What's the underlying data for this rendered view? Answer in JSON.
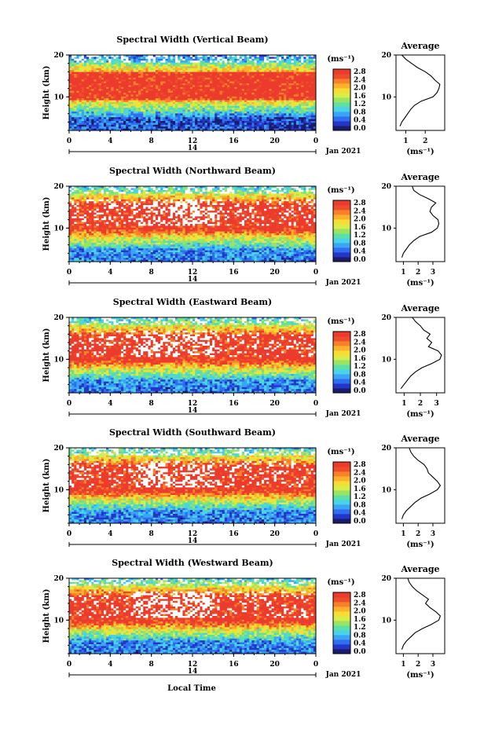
{
  "chart_data": [
    {
      "type": "heatmap",
      "title": "Spectral Width (Vertical Beam)",
      "ylabel": "Height (km)",
      "xticks": [
        "0",
        "4",
        "8",
        "12",
        "16",
        "20",
        "0"
      ],
      "date_tick": "14",
      "date_label": "Jan 2021",
      "ylim": [
        2,
        20
      ],
      "yticks": [
        "20",
        "10"
      ],
      "colorbar": {
        "unit": "(ms⁻¹)",
        "ticks": [
          "2.8",
          "2.4",
          "2.0",
          "1.6",
          "1.2",
          "0.8",
          "0.4",
          "0.0"
        ]
      },
      "profile": {
        "title": "Average",
        "xticks": [
          "1",
          "2"
        ],
        "xlim": [
          0.5,
          3.0
        ],
        "unit": "(ms⁻¹)",
        "yticks": [
          "20",
          "10"
        ],
        "heights": [
          3,
          4,
          5,
          6,
          7,
          8,
          9,
          10,
          11,
          12,
          13,
          14,
          15,
          16,
          17,
          18,
          19,
          20
        ],
        "values": [
          0.7,
          0.8,
          0.95,
          1.1,
          1.25,
          1.45,
          1.8,
          2.4,
          2.6,
          2.7,
          2.75,
          2.5,
          2.3,
          2.0,
          1.6,
          1.3,
          1.0,
          0.8
        ]
      }
    },
    {
      "type": "heatmap",
      "title": "Spectral Width (Northward Beam)",
      "ylabel": "Height (km)",
      "xticks": [
        "0",
        "4",
        "8",
        "12",
        "16",
        "20",
        "0"
      ],
      "date_tick": "14",
      "date_label": "Jan 2021",
      "ylim": [
        2,
        20
      ],
      "yticks": [
        "20",
        "10"
      ],
      "colorbar": {
        "unit": "(ms⁻¹)",
        "ticks": [
          "2.8",
          "2.4",
          "2.0",
          "1.6",
          "1.2",
          "0.8",
          "0.4",
          "0.0"
        ]
      },
      "profile": {
        "title": "Average",
        "xticks": [
          "1",
          "2",
          "3"
        ],
        "xlim": [
          0.5,
          3.8
        ],
        "unit": "(ms⁻¹)",
        "yticks": [
          "20",
          "10"
        ],
        "heights": [
          3,
          4,
          5,
          6,
          7,
          8,
          9,
          10,
          11,
          12,
          13,
          14,
          15,
          16,
          17,
          18,
          19,
          20
        ],
        "values": [
          0.9,
          1.0,
          1.2,
          1.4,
          1.7,
          2.1,
          2.9,
          3.3,
          3.4,
          3.35,
          3.0,
          2.8,
          2.9,
          3.2,
          2.7,
          2.1,
          1.7,
          1.6
        ]
      }
    },
    {
      "type": "heatmap",
      "title": "Spectral Width (Eastward Beam)",
      "ylabel": "Height (km)",
      "xticks": [
        "0",
        "4",
        "8",
        "12",
        "16",
        "20",
        "0"
      ],
      "date_tick": "14",
      "date_label": "Jan 2021",
      "ylim": [
        2,
        20
      ],
      "yticks": [
        "20",
        "10"
      ],
      "colorbar": {
        "unit": "(ms⁻¹)",
        "ticks": [
          "2.8",
          "2.4",
          "2.0",
          "1.6",
          "1.2",
          "0.8",
          "0.4",
          "0.0"
        ]
      },
      "profile": {
        "title": "Average",
        "xticks": [
          "1",
          "2",
          "3"
        ],
        "xlim": [
          0.5,
          3.5
        ],
        "unit": "(ms⁻¹)",
        "yticks": [
          "20",
          "10"
        ],
        "heights": [
          3,
          4,
          5,
          6,
          7,
          8,
          9,
          10,
          11,
          12,
          13,
          14,
          15,
          16,
          17,
          18,
          19,
          20
        ],
        "values": [
          0.8,
          1.0,
          1.2,
          1.4,
          1.7,
          2.1,
          2.7,
          3.2,
          3.3,
          3.1,
          2.5,
          2.7,
          2.4,
          2.6,
          2.2,
          2.0,
          1.7,
          1.5
        ]
      }
    },
    {
      "type": "heatmap",
      "title": "Spectral Width (Southward Beam)",
      "ylabel": "Height (km)",
      "xticks": [
        "0",
        "4",
        "8",
        "12",
        "16",
        "20",
        "0"
      ],
      "date_tick": "14",
      "date_label": "Jan 2021",
      "ylim": [
        2,
        20
      ],
      "yticks": [
        "20",
        "10"
      ],
      "colorbar": {
        "unit": "(ms⁻¹)",
        "ticks": [
          "2.8",
          "2.4",
          "2.0",
          "1.6",
          "1.2",
          "0.8",
          "0.4",
          "0.0"
        ]
      },
      "profile": {
        "title": "Average",
        "xticks": [
          "1",
          "2",
          "3"
        ],
        "xlim": [
          0.5,
          3.8
        ],
        "unit": "(ms⁻¹)",
        "yticks": [
          "20",
          "10"
        ],
        "heights": [
          3,
          4,
          5,
          6,
          7,
          8,
          9,
          10,
          11,
          12,
          13,
          14,
          15,
          16,
          17,
          18,
          19,
          20
        ],
        "values": [
          0.9,
          1.0,
          1.2,
          1.5,
          1.8,
          2.2,
          2.8,
          3.3,
          3.5,
          3.3,
          3.0,
          2.7,
          2.6,
          2.4,
          2.0,
          1.7,
          1.5,
          1.4
        ]
      }
    },
    {
      "type": "heatmap",
      "title": "Spectral Width (Westward Beam)",
      "ylabel": "Height (km)",
      "xticks": [
        "0",
        "4",
        "8",
        "12",
        "16",
        "20",
        "0"
      ],
      "date_tick": "14",
      "date_label": "Jan 2021",
      "ylim": [
        2,
        20
      ],
      "yticks": [
        "20",
        "10"
      ],
      "colorbar": {
        "unit": "(ms⁻¹)",
        "ticks": [
          "2.8",
          "2.4",
          "2.0",
          "1.6",
          "1.2",
          "0.8",
          "0.4",
          "0.0"
        ]
      },
      "profile": {
        "title": "Average",
        "xticks": [
          "1",
          "2",
          "3"
        ],
        "xlim": [
          0.5,
          3.8
        ],
        "unit": "(ms⁻¹)",
        "yticks": [
          "20",
          "10"
        ],
        "heights": [
          3,
          4,
          5,
          6,
          7,
          8,
          9,
          10,
          11,
          12,
          13,
          14,
          15,
          16,
          17,
          18,
          19,
          20
        ],
        "values": [
          0.9,
          1.0,
          1.2,
          1.5,
          1.8,
          2.3,
          2.9,
          3.4,
          3.5,
          3.2,
          2.8,
          2.5,
          2.7,
          2.3,
          1.9,
          1.6,
          1.4,
          1.3
        ]
      }
    }
  ],
  "xlabel": "Local Time"
}
